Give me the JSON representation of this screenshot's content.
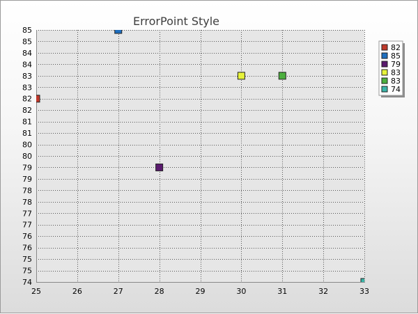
{
  "chart_data": {
    "type": "scatter",
    "title": "ErrorPoint Style",
    "xlabel": "",
    "ylabel": "",
    "xlim": [
      25,
      33
    ],
    "ylim": [
      74,
      85
    ],
    "grid": true,
    "legend_position": "right",
    "x_ticks": [
      "25",
      "26",
      "27",
      "28",
      "29",
      "30",
      "31",
      "32",
      "33"
    ],
    "x_tick_values": [
      25,
      26,
      27,
      28,
      29,
      30,
      31,
      32,
      33
    ],
    "y_ticks": [
      "74",
      "75",
      "75",
      "76",
      "76",
      "77",
      "77",
      "78",
      "78",
      "79",
      "79",
      "80",
      "80",
      "81",
      "81",
      "82",
      "82",
      "83",
      "83",
      "84",
      "84",
      "85",
      "85"
    ],
    "y_tick_values": [
      74,
      74.5,
      75,
      75.5,
      76,
      76.5,
      77,
      77.5,
      78,
      78.5,
      79,
      79.5,
      80,
      80.5,
      81,
      81.5,
      82,
      82.5,
      83,
      83.5,
      84,
      84.5,
      85
    ],
    "points": [
      {
        "label": "82",
        "x": 25,
        "y": 82,
        "color": "#c0392b"
      },
      {
        "label": "85",
        "x": 27,
        "y": 85,
        "color": "#1f6fbf"
      },
      {
        "label": "79",
        "x": 28,
        "y": 79,
        "color": "#5a1a6e"
      },
      {
        "label": "83",
        "x": 30,
        "y": 83,
        "color": "#e6f23a"
      },
      {
        "label": "83",
        "x": 31,
        "y": 83,
        "color": "#4caf3e"
      },
      {
        "label": "74",
        "x": 33,
        "y": 74,
        "color": "#3ab5a8"
      }
    ]
  },
  "colors": {
    "plot_background": "#e6e6e6",
    "grid": "#555555"
  }
}
